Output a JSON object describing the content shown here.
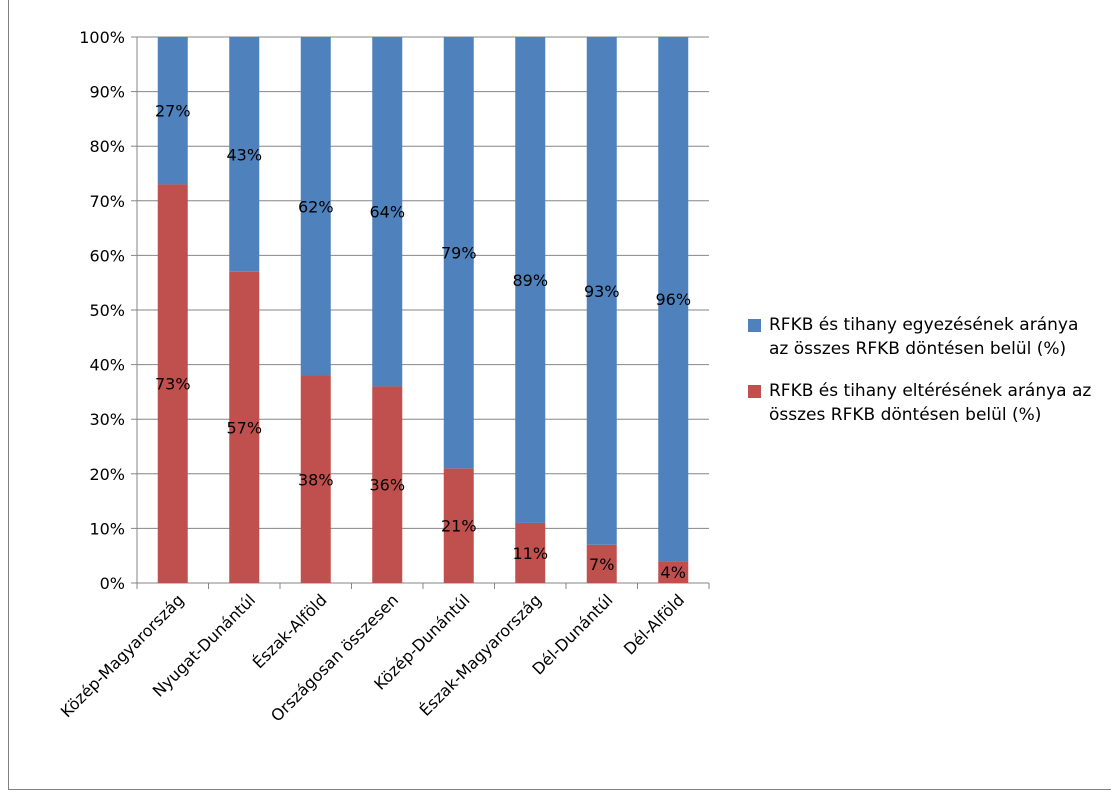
{
  "chart_data": {
    "type": "bar",
    "stacked": true,
    "percent": true,
    "categories": [
      "Közép-Magyarország",
      "Nyugat-Dunántúl",
      "Észak-Alföld",
      "Országosan összesen",
      "Közép-Dunántúl",
      "Észak-Magyarország",
      "Dél-Dunántúl",
      "Dél-Alföld"
    ],
    "series": [
      {
        "name": "RFKB és tihany eltérésének aránya az összes RFKB döntésen belül (%)",
        "color": "#c0504d",
        "values": [
          73,
          57,
          38,
          36,
          21,
          11,
          7,
          4
        ],
        "labels": [
          "73%",
          "57%",
          "38%",
          "36%",
          "21%",
          "11%",
          "7%",
          "4%"
        ]
      },
      {
        "name": "RFKB és tihany egyezésének aránya az összes RFKB döntésen belül (%)",
        "color": "#4f81bd",
        "values": [
          27,
          43,
          62,
          64,
          79,
          89,
          93,
          96
        ],
        "labels": [
          "27%",
          "43%",
          "62%",
          "64%",
          "79%",
          "89%",
          "93%",
          "96%"
        ]
      }
    ],
    "y_ticks": [
      "0%",
      "10%",
      "20%",
      "30%",
      "40%",
      "50%",
      "60%",
      "70%",
      "80%",
      "90%",
      "100%"
    ],
    "ylim": [
      0,
      100
    ],
    "grid": true,
    "legend_position": "right",
    "legend_order": [
      1,
      0
    ],
    "title": "",
    "xlabel": "",
    "ylabel": ""
  }
}
